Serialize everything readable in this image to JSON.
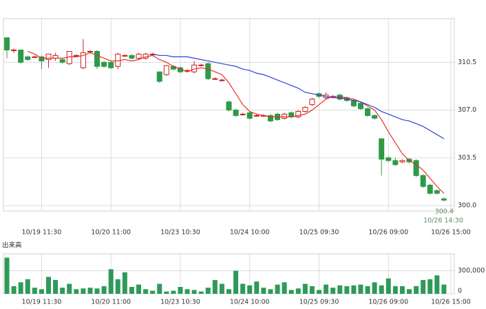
{
  "chart_data": [
    {
      "type": "candlestick",
      "categories": [
        null,
        null,
        null,
        null,
        null,
        "10/19 11:30",
        null,
        null,
        null,
        null,
        null,
        null,
        null,
        null,
        null,
        "10/20 11:00",
        null,
        null,
        null,
        null,
        null,
        null,
        null,
        null,
        null,
        "10/23 10:30",
        null,
        null,
        null,
        null,
        null,
        null,
        null,
        null,
        null,
        "10/24 10:00",
        null,
        null,
        null,
        null,
        null,
        null,
        null,
        null,
        null,
        "10/25 09:30",
        null,
        null,
        null,
        null,
        null,
        null,
        null,
        null,
        null,
        "10/26 09:00",
        null,
        null,
        null,
        null,
        null,
        null,
        null,
        null,
        "10/26 15:00"
      ],
      "open": [
        312.3,
        311.4,
        311.4,
        310.9,
        310.9,
        310.9,
        310.7,
        310.8,
        310.7,
        310.4,
        311.0,
        310.1,
        311.3,
        311.3,
        310.5,
        310.5,
        310.2,
        311.0,
        311.0,
        310.8,
        310.8,
        311.1,
        309.8,
        309.6,
        310.2,
        310.1,
        309.9,
        309.8,
        310.3,
        310.4,
        309.3,
        309.2,
        307.6,
        307.0,
        306.7,
        306.8,
        306.6,
        306.6,
        306.6,
        306.7,
        306.4,
        306.8,
        306.5,
        306.9,
        307.4,
        308.2,
        307.9,
        308.0,
        308.1,
        307.9,
        307.7,
        307.5,
        307.1,
        306.6,
        304.9,
        303.5,
        303.3,
        303.2,
        303.4,
        303.3,
        302.2,
        301.5,
        301.1,
        300.5,
        null
      ],
      "high": [
        312.3,
        311.5,
        311.4,
        311.0,
        311.0,
        311.0,
        311.1,
        311.2,
        310.8,
        311.3,
        311.1,
        312.2,
        311.4,
        311.4,
        310.6,
        310.6,
        311.2,
        311.1,
        311.1,
        311.2,
        311.2,
        311.2,
        309.8,
        310.3,
        310.3,
        310.2,
        310.0,
        310.6,
        310.4,
        310.5,
        309.4,
        309.3,
        307.7,
        307.1,
        306.8,
        306.9,
        306.7,
        306.7,
        306.7,
        306.8,
        306.8,
        306.9,
        307.0,
        307.3,
        307.9,
        308.3,
        308.3,
        308.1,
        308.2,
        308.0,
        307.8,
        307.6,
        307.2,
        306.7,
        304.9,
        303.6,
        303.5,
        303.4,
        303.5,
        303.4,
        302.3,
        301.6,
        301.2,
        300.6,
        null
      ],
      "low": [
        310.8,
        311.2,
        310.4,
        310.6,
        310.8,
        310.0,
        310.1,
        310.6,
        310.4,
        310.3,
        310.9,
        310.0,
        311.2,
        310.0,
        310.1,
        310.0,
        310.0,
        310.9,
        310.7,
        310.7,
        310.7,
        311.0,
        309.0,
        309.5,
        309.9,
        309.7,
        309.8,
        309.7,
        310.2,
        309.2,
        309.2,
        309.1,
        306.9,
        306.5,
        306.6,
        306.3,
        306.5,
        306.5,
        306.1,
        306.2,
        306.3,
        306.4,
        306.4,
        306.8,
        307.3,
        307.9,
        307.8,
        307.9,
        307.7,
        307.6,
        307.2,
        307.0,
        306.5,
        306.3,
        302.2,
        303.2,
        302.9,
        303.1,
        303.1,
        302.1,
        301.3,
        300.8,
        300.8,
        300.3,
        null
      ],
      "close": [
        311.4,
        311.4,
        310.5,
        310.7,
        310.9,
        310.6,
        311.1,
        311.0,
        310.5,
        311.3,
        311.0,
        311.2,
        311.3,
        310.2,
        310.2,
        310.1,
        311.1,
        311.0,
        310.8,
        311.1,
        311.1,
        311.1,
        309.1,
        310.25,
        310.0,
        309.8,
        309.9,
        310.3,
        310.3,
        309.3,
        309.3,
        309.2,
        307.0,
        306.6,
        306.7,
        306.4,
        306.6,
        306.6,
        306.2,
        306.3,
        306.7,
        306.5,
        306.9,
        307.2,
        307.8,
        308.0,
        308.1,
        308.0,
        307.8,
        307.7,
        307.3,
        307.1,
        306.6,
        306.4,
        303.4,
        303.3,
        303.0,
        303.3,
        303.2,
        302.2,
        301.4,
        300.9,
        300.9,
        300.4,
        null
      ],
      "up_color": "#c81e1e",
      "down_color": "#2e9a48",
      "lines": [
        {
          "color": "#e8302a",
          "values": [
            null,
            null,
            null,
            311.3,
            311.1,
            310.8,
            310.8,
            310.8,
            310.8,
            310.9,
            310.9,
            311.0,
            311.2,
            311.0,
            310.8,
            310.6,
            310.6,
            310.7,
            310.6,
            310.7,
            310.9,
            311.0,
            310.7,
            310.5,
            310.2,
            310.0,
            309.8,
            310.0,
            310.1,
            310.0,
            309.8,
            309.6,
            309.0,
            308.2,
            307.4,
            306.9,
            306.7,
            306.6,
            306.5,
            306.5,
            306.5,
            306.5,
            306.6,
            306.7,
            307.0,
            307.4,
            307.8,
            308.0,
            308.0,
            307.9,
            307.8,
            307.6,
            307.3,
            307.0,
            306.3,
            305.4,
            304.6,
            303.8,
            303.3,
            303.0,
            302.6,
            302.0,
            301.4,
            300.9,
            null
          ]
        },
        {
          "color": "#2f3fd6",
          "values": [
            null,
            null,
            null,
            null,
            null,
            null,
            null,
            null,
            null,
            null,
            null,
            null,
            null,
            null,
            null,
            null,
            null,
            null,
            null,
            null,
            null,
            311.1,
            311.0,
            311.0,
            310.9,
            310.9,
            310.9,
            310.8,
            310.7,
            310.6,
            310.5,
            310.4,
            310.3,
            310.2,
            310.0,
            309.9,
            309.7,
            309.6,
            309.4,
            309.2,
            309.0,
            308.8,
            308.6,
            308.3,
            308.2,
            308.1,
            308.0,
            307.9,
            307.9,
            307.8,
            307.7,
            307.6,
            307.4,
            307.2,
            306.9,
            306.7,
            306.5,
            306.3,
            306.2,
            306.0,
            305.8,
            305.5,
            305.2,
            304.9,
            null
          ]
        }
      ],
      "ylim": [
        299.6,
        313.7
      ],
      "yticks": [
        {
          "value": 300,
          "label": "300.0"
        },
        303.5,
        {
          "value": 307,
          "label": "307.0"
        },
        310.5
      ],
      "grid": true,
      "last_price": {
        "value": 300.4,
        "label": "10/26 14:30"
      }
    },
    {
      "type": "bar",
      "title": "出来高",
      "categories": [
        null,
        null,
        null,
        null,
        null,
        "10/19 11:30",
        null,
        null,
        null,
        null,
        null,
        null,
        null,
        null,
        null,
        "10/20 11:00",
        null,
        null,
        null,
        null,
        null,
        null,
        null,
        null,
        null,
        "10/23 10:30",
        null,
        null,
        null,
        null,
        null,
        null,
        null,
        null,
        null,
        "10/24 10:00",
        null,
        null,
        null,
        null,
        null,
        null,
        null,
        null,
        null,
        "10/25 09:30",
        null,
        null,
        null,
        null,
        null,
        null,
        null,
        null,
        null,
        "10/26 09:00",
        null,
        null,
        null,
        null,
        null,
        null,
        null,
        null,
        "10/26 15:00"
      ],
      "values": [
        470000,
        100000,
        150000,
        190000,
        80000,
        60000,
        220000,
        180000,
        80000,
        130000,
        60000,
        70000,
        80000,
        70000,
        100000,
        320000,
        190000,
        280000,
        90000,
        120000,
        60000,
        40000,
        130000,
        30000,
        40000,
        90000,
        60000,
        50000,
        30000,
        80000,
        180000,
        130000,
        60000,
        300000,
        130000,
        110000,
        160000,
        80000,
        60000,
        120000,
        150000,
        50000,
        70000,
        130000,
        100000,
        50000,
        120000,
        80000,
        110000,
        100000,
        110000,
        120000,
        100000,
        150000,
        110000,
        200000,
        100000,
        100000,
        60000,
        100000,
        180000,
        190000,
        240000,
        120000,
        null
      ],
      "color": "#2e9a5a",
      "ylim": [
        0,
        520000
      ],
      "yticks": [
        0,
        {
          "value": 300000,
          "label": "300,000"
        }
      ],
      "grid": true
    }
  ]
}
